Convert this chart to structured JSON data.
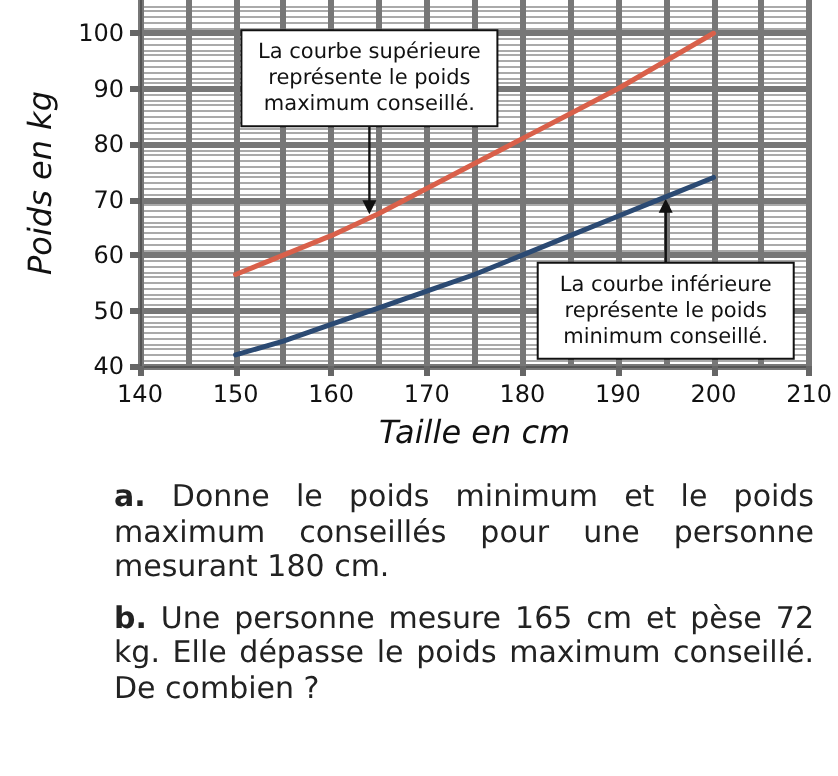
{
  "chart_data": {
    "type": "line",
    "xlabel": "Taille en cm",
    "ylabel": "Poids en kg",
    "xlim": [
      140,
      210
    ],
    "xticks": [
      140,
      150,
      160,
      170,
      180,
      190,
      200,
      210
    ],
    "ylim": [
      40,
      106
    ],
    "yticks": [
      40,
      50,
      60,
      70,
      80,
      90,
      100
    ],
    "grid": true,
    "marker": "none",
    "line_style": "solid",
    "series": [
      {
        "color": "#d9604a",
        "x": [
          150,
          155,
          160,
          165,
          170,
          175,
          180,
          185,
          190,
          195,
          200
        ],
        "values": [
          56.5,
          60,
          63.5,
          67.5,
          72,
          76.5,
          81,
          85.5,
          90,
          95,
          100
        ]
      },
      {
        "color": "#2b4a73",
        "x": [
          150,
          155,
          160,
          165,
          170,
          175,
          180,
          185,
          190,
          195,
          200
        ],
        "values": [
          42,
          44.5,
          47.5,
          50.5,
          53.5,
          56.5,
          60,
          63.5,
          67,
          70.5,
          74
        ]
      }
    ],
    "annotations": [
      {
        "text": "La courbe supérieure\nreprésente le poids\nmaximum conseillé.",
        "x": 164,
        "y": 67
      },
      {
        "text": "La courbe inférieure\nreprésente le poids\nminimum conseillé.",
        "x": 195,
        "y": 70.5
      },
      "a. Donne le poids minimum et le poids maximum conseillés pour une personne mesurant 180 cm.",
      "b. Une personne mesure 165 cm et pèse 72 kg. Elle dépasse le poids maximum conseillé. De combien ?"
    ]
  }
}
